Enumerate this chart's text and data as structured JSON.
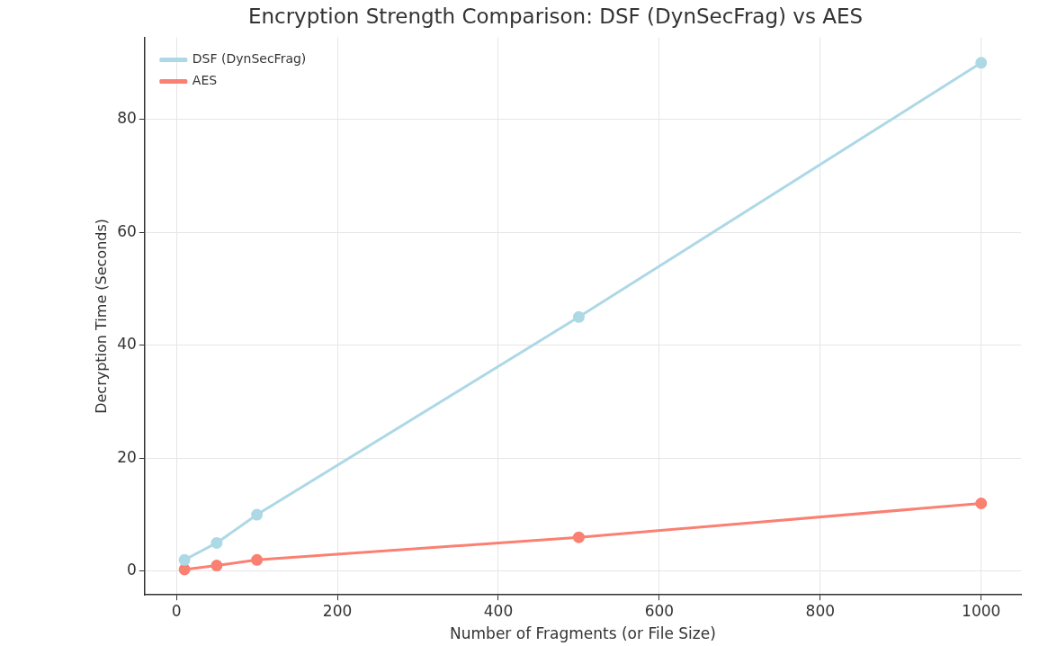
{
  "chart_data": {
    "type": "line",
    "title": "Encryption Strength Comparison: DSF (DynSecFrag) vs AES",
    "xlabel": "Number of Fragments (or File Size)",
    "ylabel": "Decryption Time (Seconds)",
    "x": [
      10,
      50,
      100,
      500,
      1000
    ],
    "series": [
      {
        "name": "DSF (DynSecFrag)",
        "color": "#add8e6",
        "values": [
          2,
          5,
          10,
          45,
          90
        ]
      },
      {
        "name": "AES",
        "color": "#fa8072",
        "values": [
          0.3,
          1,
          2,
          6,
          12
        ]
      }
    ],
    "xlim": [
      -39.5,
      1049.5
    ],
    "xticks": [
      0,
      200,
      400,
      600,
      800,
      1000
    ],
    "ylim": [
      -4.2,
      94.5
    ],
    "yticks": [
      0,
      20,
      40,
      60,
      80
    ],
    "grid": true,
    "legend": "top left",
    "marker": "circle",
    "line_style": "solid"
  }
}
